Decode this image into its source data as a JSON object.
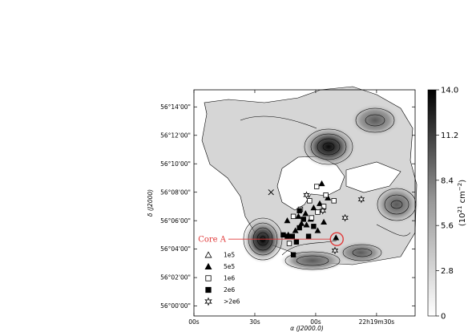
{
  "chart_data": {
    "type": "scatter",
    "title": "",
    "xlabel": "α (J2000.0)",
    "ylabel": "δ (J2000)",
    "x_tick_labels": [
      "22h19m30s",
      "00s",
      "30s",
      "00s"
    ],
    "x_ticks_ra_sec": [
      1170,
      1200,
      1230,
      1260
    ],
    "y_tick_labels": [
      "56°00'00\"",
      "56°02'00\"",
      "56°04'00\"",
      "56°06'00\"",
      "56°08'00\"",
      "56°10'00\"",
      "56°12'00\"",
      "56°14'00\""
    ],
    "y_ticks_dec_arcmin": [
      0,
      2,
      4,
      6,
      8,
      10,
      12,
      14
    ],
    "xlim_ra_sec": [
      1260,
      1151
    ],
    "ylim_dec_arcmin": [
      -0.7,
      15.2
    ],
    "colorbar": {
      "label": "(10²¹ cm⁻²)",
      "label_base": "(10",
      "label_exp1": "21",
      "label_mid": " cm",
      "label_exp2": "−2",
      "label_end": ")",
      "range": [
        0,
        14.0
      ],
      "tick_labels": [
        "0",
        "2.8",
        "5.6",
        "8.4",
        "11.2",
        "14.0"
      ],
      "tick_values": [
        0,
        2.8,
        5.6,
        8.4,
        11.2,
        14.0
      ],
      "colormap": "grayscale, white to black"
    },
    "legend": [
      {
        "label": "1e5",
        "marker": "open-triangle"
      },
      {
        "label": "5e5",
        "marker": "filled-triangle"
      },
      {
        "label": "1e6",
        "marker": "open-square"
      },
      {
        "label": "2e6",
        "marker": "filled-square"
      },
      {
        "label": ">2e6",
        "marker": "open-star"
      }
    ],
    "annotation": {
      "label": "Core A",
      "ra_sec": 1189.6,
      "dec_arcmin": 4.7,
      "color": "#e03a3a"
    },
    "series": [
      {
        "marker": "filled-triangle",
        "points": [
          {
            "ra_sec": 1197.0,
            "dec_arcmin": 8.6
          },
          {
            "ra_sec": 1194.0,
            "dec_arcmin": 7.6
          },
          {
            "ra_sec": 1198.0,
            "dec_arcmin": 7.2
          },
          {
            "ra_sec": 1201.0,
            "dec_arcmin": 6.9
          },
          {
            "ra_sec": 1205.0,
            "dec_arcmin": 6.5
          },
          {
            "ra_sec": 1202.5,
            "dec_arcmin": 6.1
          },
          {
            "ra_sec": 1204.5,
            "dec_arcmin": 5.7
          },
          {
            "ra_sec": 1207.0,
            "dec_arcmin": 5.8
          },
          {
            "ra_sec": 1210.0,
            "dec_arcmin": 5.3
          },
          {
            "ra_sec": 1213.5,
            "dec_arcmin": 5.0
          },
          {
            "ra_sec": 1196.0,
            "dec_arcmin": 5.9
          },
          {
            "ra_sec": 1208.5,
            "dec_arcmin": 6.3
          },
          {
            "ra_sec": 1214.0,
            "dec_arcmin": 6.0
          },
          {
            "ra_sec": 1190.0,
            "dec_arcmin": 4.8
          },
          {
            "ra_sec": 1199.0,
            "dec_arcmin": 5.3
          }
        ]
      },
      {
        "marker": "open-square",
        "points": [
          {
            "ra_sec": 1199.5,
            "dec_arcmin": 8.4
          },
          {
            "ra_sec": 1195.0,
            "dec_arcmin": 7.8
          },
          {
            "ra_sec": 1191.0,
            "dec_arcmin": 7.4
          },
          {
            "ra_sec": 1203.0,
            "dec_arcmin": 7.4
          },
          {
            "ra_sec": 1196.0,
            "dec_arcmin": 7.0
          },
          {
            "ra_sec": 1199.0,
            "dec_arcmin": 6.6
          },
          {
            "ra_sec": 1207.5,
            "dec_arcmin": 6.8
          },
          {
            "ra_sec": 1202.0,
            "dec_arcmin": 6.2
          },
          {
            "ra_sec": 1211.0,
            "dec_arcmin": 6.3
          },
          {
            "ra_sec": 1213.0,
            "dec_arcmin": 4.4
          }
        ]
      },
      {
        "marker": "filled-square",
        "points": [
          {
            "ra_sec": 1206.0,
            "dec_arcmin": 6.1
          },
          {
            "ra_sec": 1208.0,
            "dec_arcmin": 5.5
          },
          {
            "ra_sec": 1211.5,
            "dec_arcmin": 4.9
          },
          {
            "ra_sec": 1203.5,
            "dec_arcmin": 4.9
          },
          {
            "ra_sec": 1209.5,
            "dec_arcmin": 4.5
          },
          {
            "ra_sec": 1214.0,
            "dec_arcmin": 4.9
          },
          {
            "ra_sec": 1216.0,
            "dec_arcmin": 5.0
          },
          {
            "ra_sec": 1211.0,
            "dec_arcmin": 3.6
          },
          {
            "ra_sec": 1201.0,
            "dec_arcmin": 5.6
          },
          {
            "ra_sec": 1208.0,
            "dec_arcmin": 6.7
          }
        ]
      },
      {
        "marker": "open-star",
        "points": [
          {
            "ra_sec": 1177.5,
            "dec_arcmin": 7.5
          },
          {
            "ra_sec": 1204.5,
            "dec_arcmin": 7.8
          },
          {
            "ra_sec": 1185.5,
            "dec_arcmin": 6.2
          },
          {
            "ra_sec": 1196.5,
            "dec_arcmin": 6.7
          },
          {
            "ra_sec": 1190.5,
            "dec_arcmin": 3.9
          }
        ]
      },
      {
        "marker": "cross",
        "points": [
          {
            "ra_sec": 1222.0,
            "dec_arcmin": 8.0
          }
        ]
      }
    ]
  }
}
